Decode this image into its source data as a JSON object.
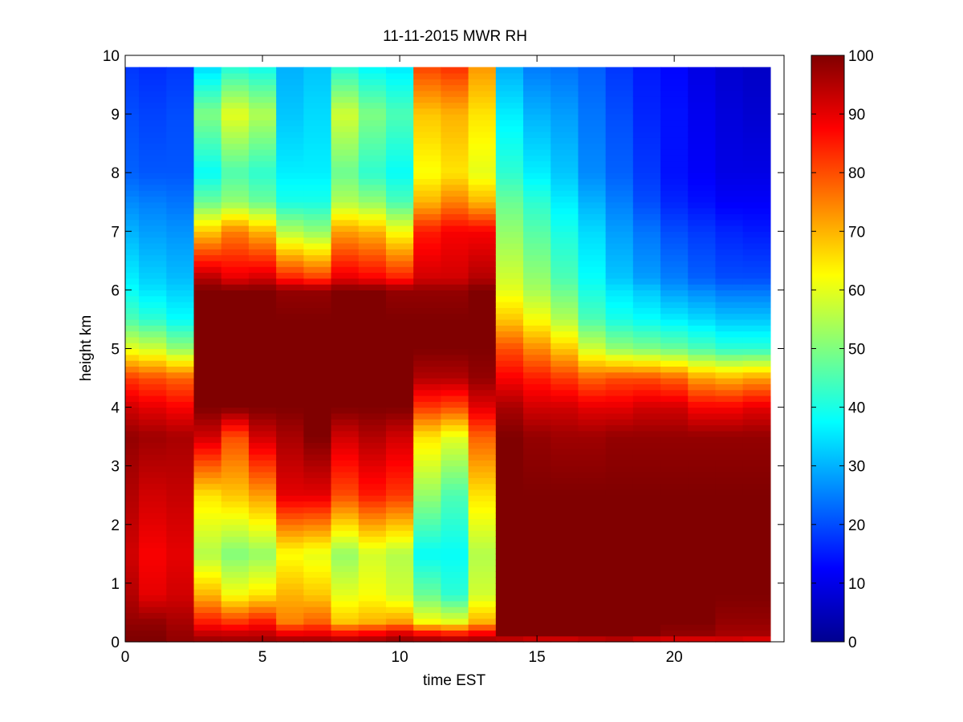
{
  "chart_data": {
    "type": "heatmap",
    "title": "11-11-2015 MWR RH",
    "xlabel": "time EST",
    "ylabel": "height km",
    "xlim": [
      0,
      24
    ],
    "ylim": [
      0,
      10
    ],
    "x_ticks": [
      "0",
      "5",
      "10",
      "15",
      "20"
    ],
    "y_ticks": [
      "0",
      "1",
      "2",
      "3",
      "4",
      "5",
      "6",
      "7",
      "8",
      "9",
      "10"
    ],
    "colorbar": {
      "colormap": "jet",
      "clim": [
        0,
        100
      ],
      "ticks": [
        "0",
        "10",
        "20",
        "30",
        "40",
        "50",
        "60",
        "70",
        "80",
        "90",
        "100"
      ]
    },
    "x_centers": [
      0,
      1,
      2,
      3,
      4,
      5,
      6,
      7,
      8,
      9,
      10,
      11,
      12,
      13,
      14,
      15,
      16,
      17,
      18,
      19,
      20,
      21,
      22,
      23
    ],
    "y_top": 9.75,
    "height_breakpoints": [
      0,
      0.1,
      0.35,
      0.8,
      1.5,
      2.5,
      3.5,
      4,
      4.5,
      5,
      5.5,
      6,
      6.2,
      7,
      7.5,
      8,
      9,
      9.75
    ],
    "rh_profiles": [
      [
        100,
        100,
        98,
        95,
        92,
        95,
        98,
        92,
        82,
        60,
        45,
        38,
        36,
        30,
        26,
        22,
        20,
        18
      ],
      [
        100,
        100,
        98,
        90,
        88,
        92,
        97,
        90,
        80,
        58,
        42,
        35,
        33,
        28,
        25,
        21,
        19,
        17
      ],
      [
        98,
        98,
        96,
        92,
        90,
        93,
        96,
        88,
        78,
        52,
        38,
        33,
        31,
        27,
        24,
        21,
        20,
        18
      ],
      [
        98,
        95,
        85,
        70,
        55,
        65,
        92,
        100,
        100,
        100,
        100,
        100,
        95,
        68,
        48,
        38,
        50,
        35
      ],
      [
        97,
        95,
        82,
        62,
        50,
        68,
        80,
        100,
        100,
        100,
        100,
        100,
        90,
        75,
        52,
        45,
        60,
        42
      ],
      [
        97,
        95,
        85,
        65,
        52,
        72,
        92,
        100,
        100,
        100,
        100,
        100,
        92,
        70,
        48,
        42,
        55,
        40
      ],
      [
        98,
        92,
        75,
        70,
        62,
        90,
        96,
        100,
        100,
        100,
        100,
        98,
        85,
        55,
        40,
        36,
        32,
        30
      ],
      [
        98,
        92,
        78,
        68,
        60,
        90,
        100,
        100,
        100,
        100,
        100,
        98,
        82,
        52,
        40,
        36,
        34,
        32
      ],
      [
        97,
        90,
        68,
        60,
        52,
        80,
        92,
        100,
        100,
        100,
        100,
        100,
        90,
        72,
        55,
        48,
        58,
        42
      ],
      [
        97,
        92,
        70,
        62,
        58,
        85,
        95,
        100,
        100,
        100,
        100,
        100,
        88,
        70,
        52,
        42,
        50,
        38
      ],
      [
        98,
        95,
        72,
        58,
        55,
        82,
        92,
        100,
        100,
        100,
        100,
        98,
        85,
        62,
        45,
        38,
        45,
        36
      ],
      [
        98,
        92,
        62,
        48,
        38,
        52,
        65,
        82,
        95,
        100,
        100,
        98,
        92,
        85,
        70,
        62,
        68,
        80
      ],
      [
        98,
        90,
        60,
        42,
        38,
        45,
        60,
        80,
        95,
        100,
        100,
        98,
        92,
        88,
        75,
        65,
        70,
        82
      ],
      [
        98,
        92,
        70,
        58,
        55,
        65,
        78,
        90,
        98,
        100,
        100,
        100,
        95,
        88,
        70,
        60,
        65,
        72
      ],
      [
        88,
        100,
        100,
        100,
        100,
        100,
        100,
        96,
        88,
        80,
        68,
        60,
        58,
        52,
        48,
        42,
        36,
        30
      ],
      [
        85,
        100,
        100,
        100,
        100,
        100,
        98,
        92,
        85,
        74,
        62,
        54,
        52,
        46,
        42,
        36,
        30,
        25
      ],
      [
        85,
        100,
        100,
        100,
        100,
        100,
        97,
        92,
        82,
        68,
        55,
        48,
        45,
        40,
        36,
        32,
        28,
        24
      ],
      [
        88,
        100,
        100,
        100,
        100,
        100,
        97,
        90,
        78,
        58,
        45,
        40,
        38,
        34,
        30,
        26,
        24,
        22
      ],
      [
        90,
        100,
        100,
        100,
        100,
        100,
        98,
        90,
        80,
        52,
        40,
        35,
        32,
        28,
        25,
        22,
        20,
        18
      ],
      [
        85,
        100,
        100,
        100,
        100,
        100,
        98,
        92,
        80,
        50,
        38,
        32,
        28,
        24,
        20,
        18,
        16,
        15
      ],
      [
        85,
        98,
        100,
        100,
        100,
        100,
        98,
        92,
        78,
        48,
        36,
        28,
        25,
        20,
        16,
        14,
        14,
        13
      ],
      [
        85,
        98,
        100,
        100,
        100,
        100,
        98,
        88,
        72,
        45,
        34,
        26,
        22,
        18,
        14,
        12,
        11,
        10
      ],
      [
        88,
        96,
        98,
        100,
        100,
        100,
        98,
        88,
        70,
        42,
        32,
        24,
        20,
        16,
        12,
        10,
        9,
        8
      ],
      [
        86,
        96,
        98,
        100,
        100,
        100,
        98,
        90,
        72,
        42,
        32,
        24,
        20,
        15,
        12,
        10,
        8,
        7
      ]
    ]
  }
}
